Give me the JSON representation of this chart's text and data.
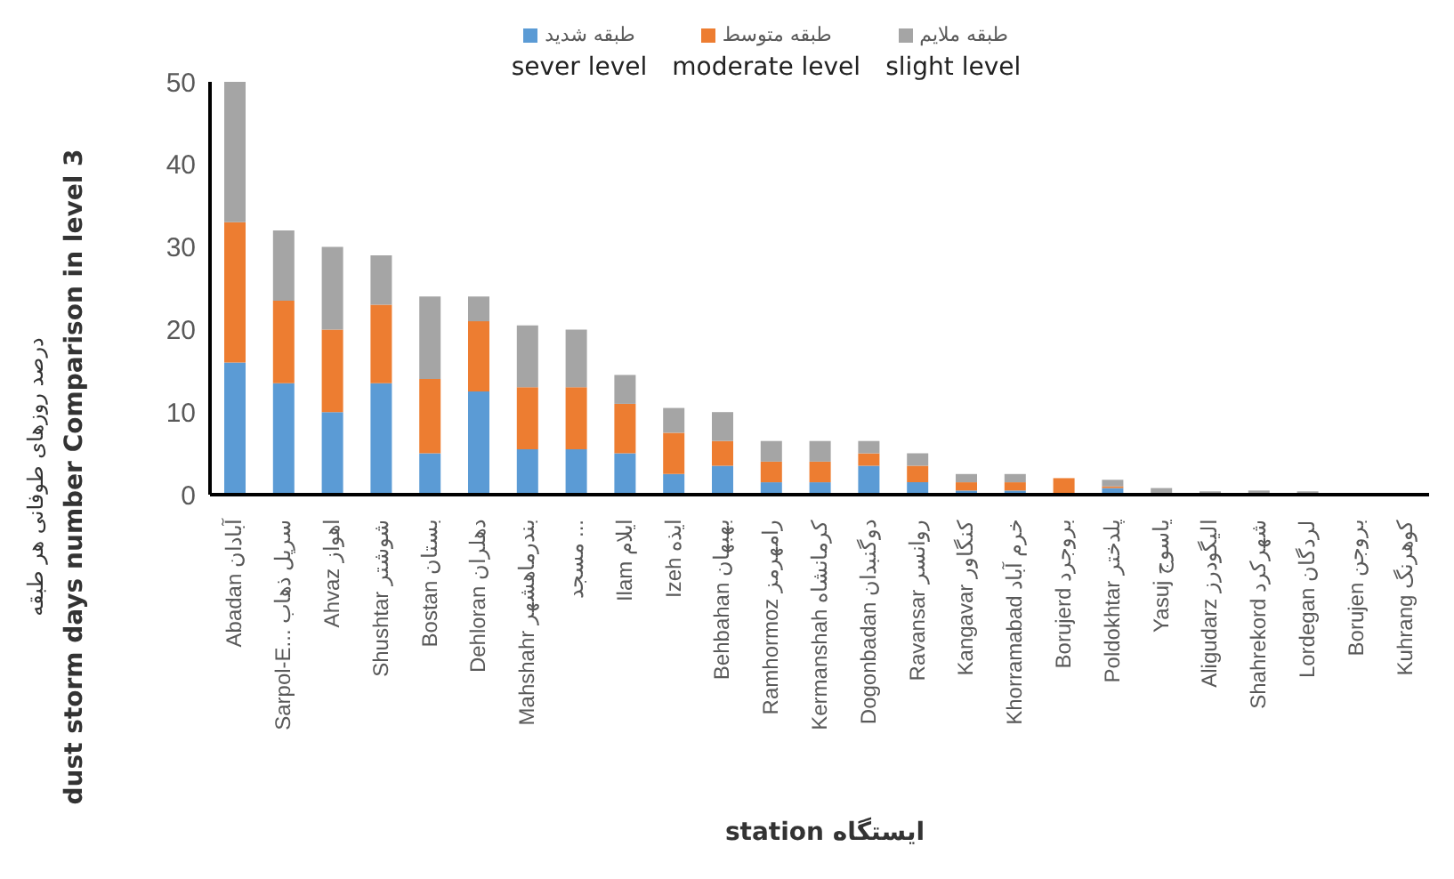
{
  "chart_data": {
    "type": "bar",
    "stacked": true,
    "categories": [
      "Abadan آبادان",
      "Sarpol-E... سرپل ذهاب",
      "Ahvaz اهواز",
      "Shushtar شوشتر",
      "Bostan بستان",
      "Dehloran دهلران",
      "Mahshahr بندرماهشهر",
      "مسجد ...",
      "Ilam ایلام",
      "Izeh ایذه",
      "Behbahan بهبهان",
      "Ramhormoz رامهرمز",
      "Kermanshah کرمانشاه",
      "Dogonbadan دوگنبدان",
      "Ravansar روانسر",
      "Kangavar کنگاور",
      "Khorramabad خرم آباد",
      "Borujerd بروجرد",
      "Poldokhtar پلدختر",
      "Yasuj یاسوج",
      "Aligudarz الیگودرز",
      "Shahrekord شهرکرد",
      "Lordegan لردگان",
      "Borujen بروجن",
      "Kuhrang کوهرنگ"
    ],
    "series": [
      {
        "name": "طبقه شدید",
        "color": "#5b9bd5",
        "values": [
          16,
          13.5,
          10,
          13.5,
          5,
          12.5,
          5.5,
          5.5,
          5,
          2.5,
          3.5,
          1.5,
          1.5,
          3.5,
          1.5,
          0.5,
          0.5,
          0,
          0.8,
          0,
          0,
          0,
          0,
          0,
          0
        ]
      },
      {
        "name": "طبقه متوسط",
        "color": "#ed7d31",
        "values": [
          17,
          10,
          10,
          9.5,
          9,
          8.5,
          7.5,
          7.5,
          6,
          5,
          3,
          2.5,
          2.5,
          1.5,
          2,
          1,
          1,
          2,
          0.2,
          0,
          0,
          0,
          0,
          0,
          0
        ]
      },
      {
        "name": "طبقه ملایم",
        "color": "#a5a5a5",
        "values": [
          17,
          8.5,
          10,
          6,
          10,
          3,
          7.5,
          7,
          3.5,
          3,
          3.5,
          2.5,
          2.5,
          1.5,
          1.5,
          1,
          1,
          0,
          0.8,
          0.8,
          0.4,
          0.5,
          0.4,
          0,
          0
        ]
      }
    ],
    "annotations": [
      "sever level",
      "moderate level",
      "slight level"
    ],
    "ylabel": "درصد روزهای طوفانی هر طبقه\ndust storm days number Comparison in level 3",
    "xlabel": "station ایستگاه",
    "ylim": [
      0,
      50
    ],
    "yticks": [
      0,
      10,
      20,
      30,
      40,
      50
    ],
    "legend": "top",
    "grid": false
  }
}
